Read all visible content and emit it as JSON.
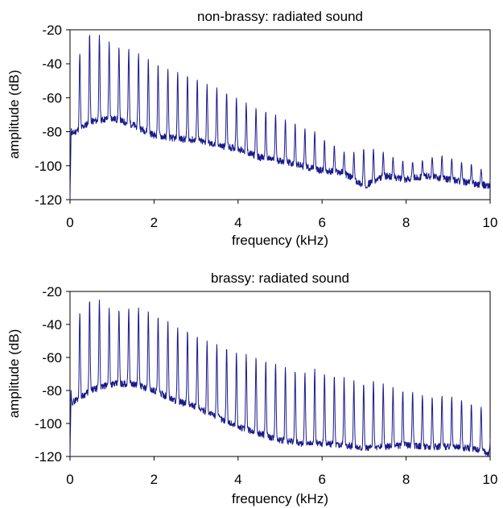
{
  "chart_data": [
    {
      "type": "line",
      "title": "non-brassy: radiated sound",
      "xlabel": "frequency (kHz)",
      "ylabel": "amplitude (dB)",
      "xlim": [
        0,
        10
      ],
      "ylim": [
        -120,
        -20
      ],
      "xticks": [
        0,
        2,
        4,
        6,
        8,
        10
      ],
      "yticks": [
        -20,
        -40,
        -60,
        -80,
        -100,
        -120
      ],
      "grid": false,
      "legend": "none",
      "line_color": "#1a1a8c",
      "fundamental_khz": 0.233,
      "harmonic_peaks": {
        "x": [
          0.23,
          0.47,
          0.7,
          0.93,
          1.17,
          1.4,
          1.63,
          1.86,
          2.1,
          2.33,
          2.56,
          2.8,
          3.03,
          3.26,
          3.5,
          3.73,
          3.96,
          4.19,
          4.43,
          4.66,
          4.89,
          5.13,
          5.36,
          5.59,
          5.83,
          6.06,
          6.29,
          6.53,
          6.76,
          6.99,
          7.22,
          7.46,
          7.69,
          7.92,
          8.16,
          8.39,
          8.62,
          8.86,
          9.09,
          9.32,
          9.55,
          9.79
        ],
        "y": [
          -34,
          -22,
          -23,
          -27,
          -30,
          -31,
          -34,
          -37,
          -40,
          -43,
          -45,
          -47,
          -49,
          -52,
          -54,
          -57,
          -60,
          -63,
          -66,
          -68,
          -70,
          -73,
          -75,
          -78,
          -80,
          -85,
          -88,
          -92,
          -92,
          -90,
          -90,
          -92,
          -95,
          -97,
          -98,
          -97,
          -95,
          -94,
          -96,
          -98,
          -99,
          -102
        ]
      },
      "noise_floor": {
        "x": [
          0,
          0.5,
          1,
          1.5,
          2,
          2.5,
          3,
          3.5,
          4,
          4.5,
          5,
          5.5,
          6,
          6.5,
          7,
          7.5,
          8,
          8.5,
          9,
          9.5,
          10
        ],
        "y": [
          -82,
          -74,
          -72,
          -76,
          -82,
          -84,
          -85,
          -88,
          -90,
          -95,
          -97,
          -100,
          -103,
          -104,
          -112,
          -106,
          -108,
          -106,
          -108,
          -110,
          -112
        ]
      }
    },
    {
      "type": "line",
      "title": "brassy: radiated sound",
      "xlabel": "frequency (kHz)",
      "ylabel": "amplitude (dB)",
      "xlim": [
        0,
        10
      ],
      "ylim": [
        -120,
        -20
      ],
      "xticks": [
        0,
        2,
        4,
        6,
        8,
        10
      ],
      "yticks": [
        -20,
        -40,
        -60,
        -80,
        -100,
        -120
      ],
      "grid": false,
      "legend": "none",
      "line_color": "#1a1a8c",
      "fundamental_khz": 0.233,
      "harmonic_peaks": {
        "x": [
          0.23,
          0.47,
          0.7,
          0.93,
          1.17,
          1.4,
          1.63,
          1.86,
          2.1,
          2.33,
          2.56,
          2.8,
          3.03,
          3.26,
          3.5,
          3.73,
          3.96,
          4.19,
          4.43,
          4.66,
          4.89,
          5.13,
          5.36,
          5.59,
          5.83,
          6.06,
          6.29,
          6.53,
          6.76,
          6.99,
          7.22,
          7.46,
          7.69,
          7.92,
          8.16,
          8.39,
          8.62,
          8.86,
          9.09,
          9.32,
          9.55,
          9.79
        ],
        "y": [
          -33,
          -25,
          -25,
          -30,
          -31,
          -30,
          -30,
          -32,
          -35,
          -38,
          -42,
          -44,
          -47,
          -50,
          -52,
          -54,
          -57,
          -58,
          -60,
          -62,
          -64,
          -66,
          -68,
          -69,
          -67,
          -70,
          -71,
          -72,
          -74,
          -76,
          -74,
          -76,
          -78,
          -80,
          -81,
          -83,
          -84,
          -83,
          -84,
          -86,
          -88,
          -90
        ]
      },
      "noise_floor": {
        "x": [
          0,
          0.5,
          1,
          1.5,
          2,
          2.5,
          3,
          3.5,
          4,
          4.5,
          5,
          5.5,
          6,
          6.5,
          7,
          7.5,
          8,
          8.5,
          9,
          9.5,
          10
        ],
        "y": [
          -88,
          -80,
          -76,
          -76,
          -80,
          -86,
          -90,
          -96,
          -102,
          -106,
          -110,
          -112,
          -112,
          -113,
          -115,
          -114,
          -113,
          -114,
          -114,
          -115,
          -118
        ]
      }
    }
  ]
}
